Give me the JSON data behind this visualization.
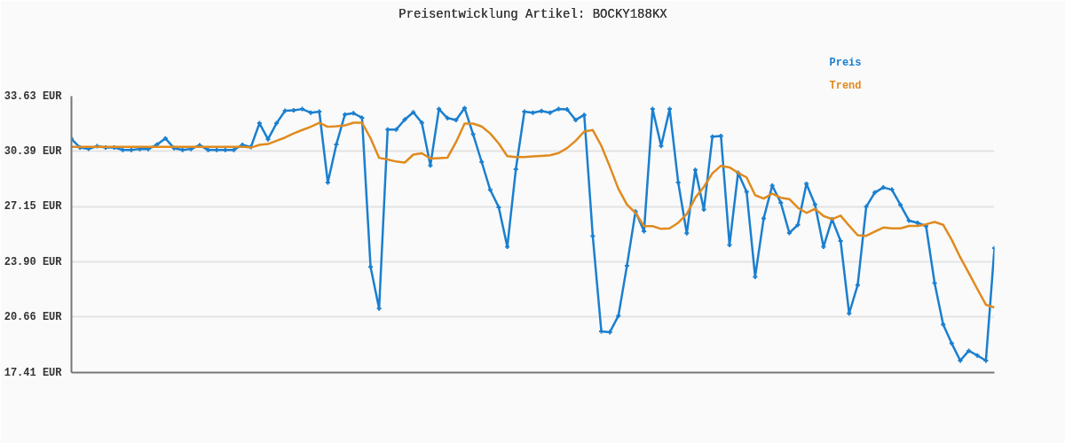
{
  "chart_data": {
    "type": "line",
    "title": "Preisentwicklung Artikel: BOCKY188KX",
    "categories": [
      null,
      null,
      null,
      null,
      null,
      null,
      null,
      null,
      null,
      null,
      null,
      null,
      null,
      null,
      null,
      null,
      null,
      null,
      null,
      null,
      null,
      null,
      null,
      null,
      null,
      null,
      null,
      null,
      null,
      null,
      null,
      null,
      null,
      null,
      null,
      null,
      null,
      null,
      null,
      null,
      null,
      null,
      null,
      null,
      null,
      null,
      null,
      null,
      null,
      null,
      null,
      null,
      null,
      null,
      null,
      null,
      null,
      null,
      null,
      null,
      null,
      null,
      null,
      null,
      null,
      null,
      null,
      null,
      null,
      null,
      null,
      null,
      null,
      null,
      null,
      null,
      null,
      null,
      null,
      null,
      null,
      null,
      null,
      null,
      null,
      null,
      null,
      null,
      null,
      null,
      null,
      null,
      null,
      null,
      null,
      null,
      null,
      null,
      null,
      null,
      null,
      null,
      null,
      null,
      null,
      null,
      null,
      null,
      null
    ],
    "series": [
      {
        "name": "Preis",
        "color": "#1a7fcf",
        "marker": "cross",
        "values": [
          31.12,
          30.61,
          30.54,
          30.69,
          30.62,
          30.62,
          30.47,
          30.47,
          30.53,
          30.53,
          30.78,
          31.15,
          30.58,
          30.47,
          30.53,
          30.75,
          30.47,
          30.47,
          30.47,
          30.47,
          30.77,
          30.64,
          32.04,
          31.1,
          32.04,
          32.77,
          32.8,
          32.87,
          32.66,
          32.72,
          28.56,
          30.8,
          32.55,
          32.63,
          32.36,
          23.61,
          21.17,
          31.67,
          31.67,
          32.25,
          32.68,
          32.07,
          29.56,
          32.87,
          32.34,
          32.23,
          32.93,
          31.39,
          29.77,
          28.13,
          27.11,
          24.79,
          29.34,
          32.72,
          32.66,
          32.76,
          32.66,
          32.88,
          32.85,
          32.23,
          32.53,
          25.41,
          19.83,
          19.78,
          20.74,
          23.68,
          26.86,
          25.7,
          32.87,
          30.71,
          32.87,
          28.56,
          25.58,
          29.3,
          26.97,
          31.25,
          31.29,
          24.89,
          29.13,
          28.02,
          23.03,
          26.46,
          28.38,
          27.38,
          25.6,
          26.08,
          28.48,
          27.27,
          24.79,
          26.41,
          25.13,
          20.88,
          22.55,
          27.14,
          27.97,
          28.27,
          28.14,
          27.25,
          26.33,
          26.2,
          26.0,
          22.66,
          20.23,
          19.12,
          18.11,
          18.69,
          18.41,
          18.11,
          24.71
        ]
      },
      {
        "name": "Trend",
        "color": "#e08a1e",
        "marker": "none",
        "values": [
          30.66,
          30.66,
          30.66,
          30.66,
          30.66,
          30.66,
          30.66,
          30.66,
          30.66,
          30.66,
          30.66,
          30.66,
          30.66,
          30.66,
          30.66,
          30.66,
          30.66,
          30.66,
          30.66,
          30.66,
          30.66,
          30.61,
          30.77,
          30.82,
          31.01,
          31.2,
          31.44,
          31.64,
          31.83,
          32.07,
          31.83,
          31.86,
          31.91,
          32.07,
          32.07,
          31.16,
          30.01,
          29.91,
          29.79,
          29.73,
          30.2,
          30.28,
          29.97,
          29.99,
          30.02,
          30.93,
          32.02,
          32.02,
          31.85,
          31.44,
          30.85,
          30.11,
          30.05,
          30.05,
          30.09,
          30.12,
          30.16,
          30.29,
          30.58,
          31.01,
          31.55,
          31.64,
          30.72,
          29.49,
          28.19,
          27.27,
          26.78,
          26.0,
          26.0,
          25.84,
          25.87,
          26.2,
          26.71,
          27.67,
          28.3,
          29.1,
          29.54,
          29.45,
          29.13,
          28.86,
          27.82,
          27.62,
          27.91,
          27.67,
          27.59,
          27.08,
          26.78,
          27.02,
          26.6,
          26.41,
          26.62,
          26.03,
          25.47,
          25.43,
          25.68,
          25.92,
          25.87,
          25.87,
          26.01,
          26.01,
          26.11,
          26.25,
          26.08,
          25.2,
          24.17,
          23.25,
          22.31,
          21.39,
          21.23
        ]
      }
    ],
    "ylim": [
      17.41,
      33.63
    ],
    "yticks": [
      {
        "value": 17.41,
        "label": "17.41 EUR"
      },
      {
        "value": 20.66,
        "label": "20.66 EUR"
      },
      {
        "value": 23.9,
        "label": "23.90 EUR"
      },
      {
        "value": 27.15,
        "label": "27.15 EUR"
      },
      {
        "value": 30.39,
        "label": "30.39 EUR"
      },
      {
        "value": 33.63,
        "label": "33.63 EUR"
      }
    ],
    "grid": "y",
    "tick_labels": "y",
    "line_style": "solid"
  }
}
